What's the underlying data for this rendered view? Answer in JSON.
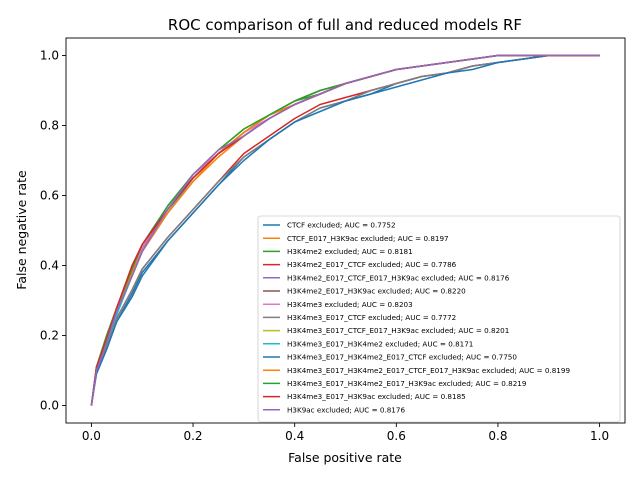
{
  "chart_data": {
    "type": "line",
    "title": "ROC comparison of full and reduced models RF",
    "xlabel": "False positive rate",
    "ylabel": "False negative rate",
    "xlim": [
      -0.05,
      1.05
    ],
    "ylim": [
      -0.05,
      1.05
    ],
    "xticks": [
      "0.0",
      "0.2",
      "0.4",
      "0.6",
      "0.8",
      "1.0"
    ],
    "yticks": [
      "0.0",
      "0.2",
      "0.4",
      "0.6",
      "0.8",
      "1.0"
    ],
    "grid": false,
    "legend_position": "lower-right",
    "series": [
      {
        "name": "CTCF excluded; AUC = 0.7752",
        "color": "#1f77b4",
        "x": [
          0,
          0.01,
          0.03,
          0.05,
          0.08,
          0.1,
          0.15,
          0.2,
          0.25,
          0.3,
          0.35,
          0.4,
          0.45,
          0.5,
          0.55,
          0.6,
          0.65,
          0.7,
          0.75,
          0.8,
          0.85,
          0.9,
          1.0
        ],
        "y": [
          0,
          0.1,
          0.17,
          0.24,
          0.32,
          0.38,
          0.47,
          0.55,
          0.63,
          0.71,
          0.76,
          0.81,
          0.85,
          0.87,
          0.89,
          0.92,
          0.94,
          0.95,
          0.97,
          0.98,
          0.99,
          1.0,
          1.0
        ]
      },
      {
        "name": "CTCF_E017_H3K9ac excluded; AUC = 0.8197",
        "color": "#ff7f0e",
        "x": [
          0,
          0.01,
          0.03,
          0.05,
          0.08,
          0.1,
          0.15,
          0.2,
          0.25,
          0.3,
          0.35,
          0.4,
          0.45,
          0.5,
          0.55,
          0.6,
          0.65,
          0.7,
          0.75,
          0.8,
          0.85,
          0.9,
          1.0
        ],
        "y": [
          0,
          0.11,
          0.19,
          0.27,
          0.37,
          0.44,
          0.55,
          0.64,
          0.71,
          0.77,
          0.82,
          0.86,
          0.89,
          0.92,
          0.94,
          0.96,
          0.97,
          0.98,
          0.99,
          1.0,
          1.0,
          1.0,
          1.0
        ]
      },
      {
        "name": "H3K4me2 excluded; AUC = 0.8181",
        "color": "#2ca02c",
        "x": [
          0,
          0.01,
          0.03,
          0.05,
          0.08,
          0.1,
          0.15,
          0.2,
          0.25,
          0.3,
          0.35,
          0.4,
          0.45,
          0.5,
          0.55,
          0.6,
          0.65,
          0.7,
          0.75,
          0.8,
          0.85,
          0.9,
          1.0
        ],
        "y": [
          0,
          0.1,
          0.18,
          0.27,
          0.38,
          0.45,
          0.56,
          0.65,
          0.72,
          0.78,
          0.83,
          0.87,
          0.89,
          0.92,
          0.94,
          0.96,
          0.97,
          0.98,
          0.99,
          1.0,
          1.0,
          1.0,
          1.0
        ]
      },
      {
        "name": "H3K4me2_E017_CTCF excluded; AUC = 0.7786",
        "color": "#d62728",
        "x": [
          0,
          0.01,
          0.03,
          0.05,
          0.08,
          0.1,
          0.15,
          0.2,
          0.25,
          0.3,
          0.35,
          0.4,
          0.45,
          0.5,
          0.55,
          0.6,
          0.65,
          0.7,
          0.75,
          0.8,
          0.85,
          0.9,
          1.0
        ],
        "y": [
          0,
          0.1,
          0.17,
          0.25,
          0.33,
          0.39,
          0.48,
          0.56,
          0.64,
          0.72,
          0.77,
          0.82,
          0.86,
          0.88,
          0.9,
          0.92,
          0.94,
          0.95,
          0.97,
          0.98,
          0.99,
          1.0,
          1.0
        ]
      },
      {
        "name": "H3K4me2_E017_CTCF_E017_H3K9ac excluded; AUC = 0.8176",
        "color": "#9467bd",
        "x": [
          0,
          0.01,
          0.03,
          0.05,
          0.08,
          0.1,
          0.15,
          0.2,
          0.25,
          0.3,
          0.35,
          0.4,
          0.45,
          0.5,
          0.55,
          0.6,
          0.65,
          0.7,
          0.75,
          0.8,
          0.85,
          0.9,
          1.0
        ],
        "y": [
          0,
          0.1,
          0.18,
          0.27,
          0.37,
          0.44,
          0.56,
          0.65,
          0.72,
          0.77,
          0.82,
          0.86,
          0.89,
          0.92,
          0.94,
          0.96,
          0.97,
          0.98,
          0.99,
          1.0,
          1.0,
          1.0,
          1.0
        ]
      },
      {
        "name": "H3K4me2_E017_H3K9ac excluded; AUC = 0.8220",
        "color": "#8c564b",
        "x": [
          0,
          0.01,
          0.03,
          0.05,
          0.08,
          0.1,
          0.15,
          0.2,
          0.25,
          0.3,
          0.35,
          0.4,
          0.45,
          0.5,
          0.55,
          0.6,
          0.65,
          0.7,
          0.75,
          0.8,
          0.85,
          0.9,
          1.0
        ],
        "y": [
          0,
          0.11,
          0.19,
          0.28,
          0.38,
          0.45,
          0.56,
          0.65,
          0.72,
          0.78,
          0.83,
          0.87,
          0.9,
          0.92,
          0.94,
          0.96,
          0.97,
          0.98,
          0.99,
          1.0,
          1.0,
          1.0,
          1.0
        ]
      },
      {
        "name": "H3K4me3 excluded; AUC = 0.8203",
        "color": "#e377c2",
        "x": [
          0,
          0.01,
          0.03,
          0.05,
          0.08,
          0.1,
          0.15,
          0.2,
          0.25,
          0.3,
          0.35,
          0.4,
          0.45,
          0.5,
          0.55,
          0.6,
          0.65,
          0.7,
          0.75,
          0.8,
          0.85,
          0.9,
          1.0
        ],
        "y": [
          0,
          0.11,
          0.19,
          0.27,
          0.38,
          0.45,
          0.57,
          0.66,
          0.72,
          0.78,
          0.82,
          0.86,
          0.89,
          0.92,
          0.94,
          0.96,
          0.97,
          0.98,
          0.99,
          1.0,
          1.0,
          1.0,
          1.0
        ]
      },
      {
        "name": "H3K4me3_E017_CTCF excluded; AUC = 0.7772",
        "color": "#7f7f7f",
        "x": [
          0,
          0.01,
          0.03,
          0.05,
          0.08,
          0.1,
          0.15,
          0.2,
          0.25,
          0.3,
          0.35,
          0.4,
          0.45,
          0.5,
          0.55,
          0.6,
          0.65,
          0.7,
          0.75,
          0.8,
          0.85,
          0.9,
          1.0
        ],
        "y": [
          0,
          0.1,
          0.17,
          0.25,
          0.33,
          0.39,
          0.48,
          0.56,
          0.64,
          0.71,
          0.76,
          0.81,
          0.85,
          0.87,
          0.9,
          0.92,
          0.94,
          0.95,
          0.97,
          0.98,
          0.99,
          1.0,
          1.0
        ]
      },
      {
        "name": "H3K4me3_E017_CTCF_E017_H3K9ac excluded; AUC = 0.8201",
        "color": "#bcbd22",
        "x": [
          0,
          0.01,
          0.03,
          0.05,
          0.08,
          0.1,
          0.15,
          0.2,
          0.25,
          0.3,
          0.35,
          0.4,
          0.45,
          0.5,
          0.55,
          0.6,
          0.65,
          0.7,
          0.75,
          0.8,
          0.85,
          0.9,
          1.0
        ],
        "y": [
          0,
          0.11,
          0.19,
          0.27,
          0.37,
          0.44,
          0.56,
          0.66,
          0.73,
          0.79,
          0.83,
          0.86,
          0.89,
          0.92,
          0.94,
          0.96,
          0.97,
          0.98,
          0.99,
          1.0,
          1.0,
          1.0,
          1.0
        ]
      },
      {
        "name": "H3K4me3_E017_H3K4me2 excluded; AUC = 0.8171",
        "color": "#17becf",
        "x": [
          0,
          0.01,
          0.03,
          0.05,
          0.08,
          0.1,
          0.15,
          0.2,
          0.25,
          0.3,
          0.35,
          0.4,
          0.45,
          0.5,
          0.55,
          0.6,
          0.65,
          0.7,
          0.75,
          0.8,
          0.85,
          0.9,
          1.0
        ],
        "y": [
          0,
          0.1,
          0.18,
          0.26,
          0.37,
          0.44,
          0.55,
          0.65,
          0.72,
          0.77,
          0.82,
          0.86,
          0.89,
          0.92,
          0.94,
          0.96,
          0.97,
          0.98,
          0.99,
          1.0,
          1.0,
          1.0,
          1.0
        ]
      },
      {
        "name": "H3K4me3_E017_H3K4me2_E017_CTCF excluded; AUC = 0.7750",
        "color": "#1f77b4",
        "x": [
          0,
          0.01,
          0.03,
          0.05,
          0.08,
          0.1,
          0.15,
          0.2,
          0.25,
          0.3,
          0.35,
          0.4,
          0.45,
          0.5,
          0.55,
          0.6,
          0.65,
          0.7,
          0.75,
          0.8,
          0.85,
          0.9,
          1.0
        ],
        "y": [
          0,
          0.09,
          0.16,
          0.24,
          0.31,
          0.37,
          0.47,
          0.55,
          0.63,
          0.7,
          0.76,
          0.81,
          0.84,
          0.87,
          0.89,
          0.91,
          0.93,
          0.95,
          0.96,
          0.98,
          0.99,
          1.0,
          1.0
        ]
      },
      {
        "name": "H3K4me3_E017_H3K4me2_E017_CTCF_E017_H3K9ac excluded; AUC = 0.8199",
        "color": "#ff7f0e",
        "x": [
          0,
          0.01,
          0.03,
          0.05,
          0.08,
          0.1,
          0.15,
          0.2,
          0.25,
          0.3,
          0.35,
          0.4,
          0.45,
          0.5,
          0.55,
          0.6,
          0.65,
          0.7,
          0.75,
          0.8,
          0.85,
          0.9,
          1.0
        ],
        "y": [
          0,
          0.11,
          0.2,
          0.28,
          0.38,
          0.44,
          0.55,
          0.64,
          0.72,
          0.78,
          0.83,
          0.86,
          0.89,
          0.92,
          0.94,
          0.96,
          0.97,
          0.98,
          0.99,
          1.0,
          1.0,
          1.0,
          1.0
        ]
      },
      {
        "name": "H3K4me3_E017_H3K4me2_E017_H3K9ac excluded; AUC = 0.8219",
        "color": "#2ca02c",
        "x": [
          0,
          0.01,
          0.03,
          0.05,
          0.08,
          0.1,
          0.15,
          0.2,
          0.25,
          0.3,
          0.35,
          0.4,
          0.45,
          0.5,
          0.55,
          0.6,
          0.65,
          0.7,
          0.75,
          0.8,
          0.85,
          0.9,
          1.0
        ],
        "y": [
          0,
          0.11,
          0.2,
          0.28,
          0.39,
          0.46,
          0.57,
          0.66,
          0.73,
          0.79,
          0.83,
          0.87,
          0.9,
          0.92,
          0.94,
          0.96,
          0.97,
          0.98,
          0.99,
          1.0,
          1.0,
          1.0,
          1.0
        ]
      },
      {
        "name": "H3K4me3_E017_H3K9ac excluded; AUC = 0.8185",
        "color": "#d62728",
        "x": [
          0,
          0.01,
          0.03,
          0.05,
          0.08,
          0.1,
          0.15,
          0.2,
          0.25,
          0.3,
          0.35,
          0.4,
          0.45,
          0.5,
          0.55,
          0.6,
          0.65,
          0.7,
          0.75,
          0.8,
          0.85,
          0.9,
          1.0
        ],
        "y": [
          0,
          0.11,
          0.19,
          0.28,
          0.4,
          0.46,
          0.56,
          0.65,
          0.72,
          0.77,
          0.82,
          0.86,
          0.89,
          0.92,
          0.94,
          0.96,
          0.97,
          0.98,
          0.99,
          1.0,
          1.0,
          1.0,
          1.0
        ]
      },
      {
        "name": "H3K9ac excluded; AUC = 0.8176",
        "color": "#9467bd",
        "x": [
          0,
          0.01,
          0.03,
          0.05,
          0.08,
          0.1,
          0.15,
          0.2,
          0.25,
          0.3,
          0.35,
          0.4,
          0.45,
          0.5,
          0.55,
          0.6,
          0.65,
          0.7,
          0.75,
          0.8,
          0.85,
          0.9,
          1.0
        ],
        "y": [
          0,
          0.1,
          0.18,
          0.27,
          0.37,
          0.44,
          0.56,
          0.66,
          0.73,
          0.77,
          0.82,
          0.86,
          0.89,
          0.92,
          0.94,
          0.96,
          0.97,
          0.98,
          0.99,
          1.0,
          1.0,
          1.0,
          1.0
        ]
      }
    ]
  }
}
